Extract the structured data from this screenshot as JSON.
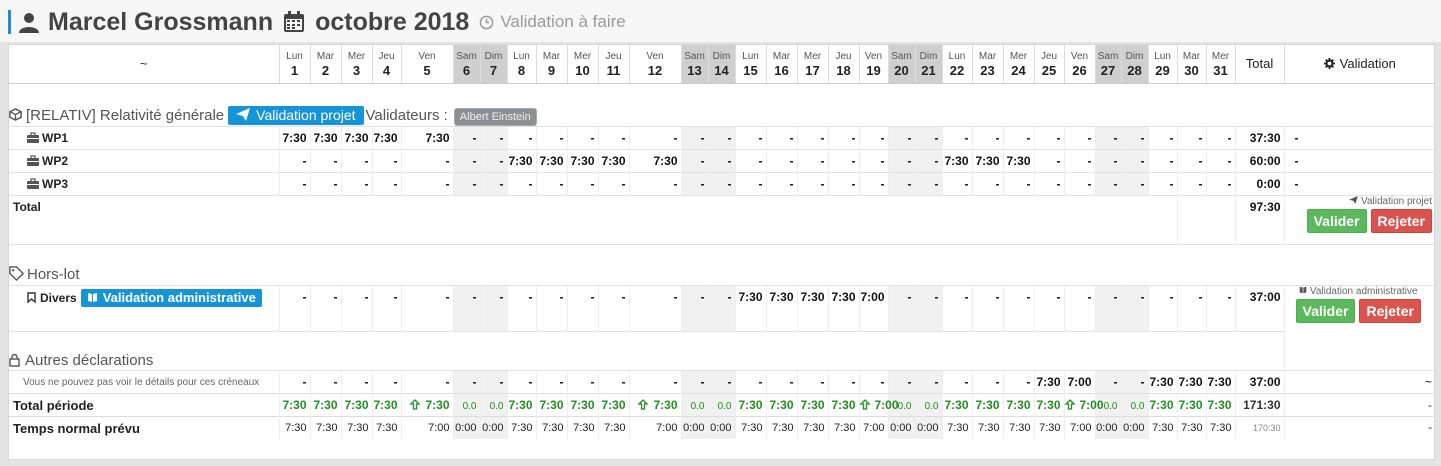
{
  "header": {
    "person": "Marcel Grossmann",
    "period": "octobre 2018",
    "status": "Validation à faire"
  },
  "table": {
    "corner_label": "~",
    "total_label": "Total",
    "validation_label": "Validation",
    "days": [
      {
        "n": "Lun",
        "d": "1",
        "we": false
      },
      {
        "n": "Mar",
        "d": "2",
        "we": false
      },
      {
        "n": "Mer",
        "d": "3",
        "we": false
      },
      {
        "n": "Jeu",
        "d": "4",
        "we": false
      },
      {
        "n": "Ven",
        "d": "5",
        "we": false
      },
      {
        "n": "Sam",
        "d": "6",
        "we": true
      },
      {
        "n": "Dim",
        "d": "7",
        "we": true
      },
      {
        "n": "Lun",
        "d": "8",
        "we": false
      },
      {
        "n": "Mar",
        "d": "9",
        "we": false
      },
      {
        "n": "Mer",
        "d": "10",
        "we": false
      },
      {
        "n": "Jeu",
        "d": "11",
        "we": false
      },
      {
        "n": "Ven",
        "d": "12",
        "we": false
      },
      {
        "n": "Sam",
        "d": "13",
        "we": true
      },
      {
        "n": "Dim",
        "d": "14",
        "we": true
      },
      {
        "n": "Lun",
        "d": "15",
        "we": false
      },
      {
        "n": "Mar",
        "d": "16",
        "we": false
      },
      {
        "n": "Mer",
        "d": "17",
        "we": false
      },
      {
        "n": "Jeu",
        "d": "18",
        "we": false
      },
      {
        "n": "Ven",
        "d": "19",
        "we": false
      },
      {
        "n": "Sam",
        "d": "20",
        "we": true
      },
      {
        "n": "Dim",
        "d": "21",
        "we": true
      },
      {
        "n": "Lun",
        "d": "22",
        "we": false
      },
      {
        "n": "Mar",
        "d": "23",
        "we": false
      },
      {
        "n": "Mer",
        "d": "24",
        "we": false
      },
      {
        "n": "Jeu",
        "d": "25",
        "we": false
      },
      {
        "n": "Ven",
        "d": "26",
        "we": false
      },
      {
        "n": "Sam",
        "d": "27",
        "we": true
      },
      {
        "n": "Dim",
        "d": "28",
        "we": true
      },
      {
        "n": "Lun",
        "d": "29",
        "we": false
      },
      {
        "n": "Mar",
        "d": "30",
        "we": false
      },
      {
        "n": "Mer",
        "d": "31",
        "we": false
      }
    ]
  },
  "project": {
    "title": "[RELATIV] Relativité générale",
    "validate_btn": "Validation projet",
    "validators_label": "Validateurs :",
    "validator": "Albert Einstein",
    "rows": [
      {
        "label": "WP1",
        "cells": [
          "7:30",
          "7:30",
          "7:30",
          "7:30",
          "7:30",
          "-",
          "-",
          "-",
          "-",
          "-",
          "-",
          "-",
          "-",
          "-",
          "-",
          "-",
          "-",
          "-",
          "-",
          "-",
          "-",
          "-",
          "-",
          "-",
          "-",
          "-",
          "-",
          "-",
          "-",
          "-",
          "-"
        ],
        "total": "37:30",
        "validation": "-"
      },
      {
        "label": "WP2",
        "cells": [
          "-",
          "-",
          "-",
          "-",
          "-",
          "-",
          "-",
          "7:30",
          "7:30",
          "7:30",
          "7:30",
          "7:30",
          "-",
          "-",
          "-",
          "-",
          "-",
          "-",
          "-",
          "-",
          "-",
          "7:30",
          "7:30",
          "7:30",
          "-",
          "-",
          "-",
          "-",
          "-",
          "-",
          "-"
        ],
        "total": "60:00",
        "validation": "-"
      },
      {
        "label": "WP3",
        "cells": [
          "-",
          "-",
          "-",
          "-",
          "-",
          "-",
          "-",
          "-",
          "-",
          "-",
          "-",
          "-",
          "-",
          "-",
          "-",
          "-",
          "-",
          "-",
          "-",
          "-",
          "-",
          "-",
          "-",
          "-",
          "-",
          "-",
          "-",
          "-",
          "-",
          "-",
          "-"
        ],
        "total": "0:00",
        "validation": "-"
      }
    ],
    "total_label": "Total",
    "total_value": "97:30",
    "validation_title": "Validation projet",
    "valider": "Valider",
    "rejeter": "Rejeter"
  },
  "horslot": {
    "title": "Hors-lot",
    "row_label": "Divers",
    "row_btn": "Validation administrative",
    "cells": [
      "-",
      "-",
      "-",
      "-",
      "-",
      "-",
      "-",
      "-",
      "-",
      "-",
      "-",
      "-",
      "-",
      "-",
      "7:30",
      "7:30",
      "7:30",
      "7:30",
      "7:00",
      "-",
      "-",
      "-",
      "-",
      "-",
      "-",
      "-",
      "-",
      "-",
      "-",
      "-",
      "-"
    ],
    "total": "37:00",
    "validation_title": "Validation administrative",
    "valider": "Valider",
    "rejeter": "Rejeter"
  },
  "autres": {
    "title": "Autres déclarations",
    "note": "Vous ne pouvez pas voir le détails pour ces créneaux",
    "cells": [
      "-",
      "-",
      "-",
      "-",
      "-",
      "-",
      "-",
      "-",
      "-",
      "-",
      "-",
      "-",
      "-",
      "-",
      "-",
      "-",
      "-",
      "-",
      "-",
      "-",
      "-",
      "-",
      "-",
      "-",
      "7:30",
      "7:00",
      "-",
      "-",
      "7:30",
      "7:30",
      "7:30"
    ],
    "total": "37:00",
    "validation": "~"
  },
  "total_periode": {
    "label": "Total période",
    "cells": [
      "7:30",
      "7:30",
      "7:30",
      "7:30",
      "7:30",
      "0.0",
      "0.0",
      "7:30",
      "7:30",
      "7:30",
      "7:30",
      "7:30",
      "0.0",
      "0.0",
      "7:30",
      "7:30",
      "7:30",
      "7:30",
      "7:00",
      "0.0",
      "0.0",
      "7:30",
      "7:30",
      "7:30",
      "7:30",
      "7:00",
      "0.0",
      "0.0",
      "7:30",
      "7:30",
      "7:30"
    ],
    "total": "171:30",
    "validation": "-"
  },
  "temps_normal": {
    "label": "Temps normal prévu",
    "cells": [
      "7:30",
      "7:30",
      "7:30",
      "7:30",
      "7:00",
      "0:00",
      "0:00",
      "7:30",
      "7:30",
      "7:30",
      "7:30",
      "7:00",
      "0:00",
      "0:00",
      "7:30",
      "7:30",
      "7:30",
      "7:30",
      "7:00",
      "0:00",
      "0:00",
      "7:30",
      "7:30",
      "7:30",
      "7:30",
      "7:00",
      "0:00",
      "0:00",
      "7:30",
      "7:30",
      "7:30"
    ],
    "total": "170:30",
    "validation": "-"
  },
  "colors": {
    "accent": "#1594d8",
    "green": "#5cb85c",
    "red": "#d9534f",
    "ok": "#1f8f1f"
  }
}
